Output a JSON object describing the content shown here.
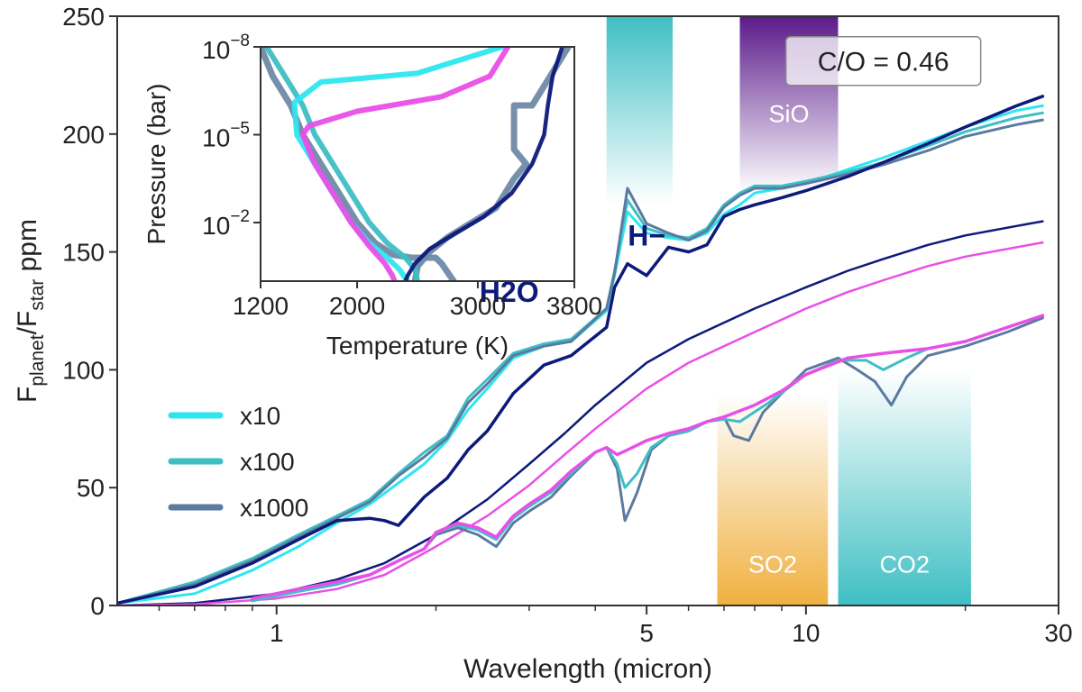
{
  "chart_data": {
    "type": "line",
    "main": {
      "xlabel": "Wavelength (micron)",
      "ylabel_main": "F",
      "ylabel_sub1": "planet",
      "ylabel_mid": "/F",
      "ylabel_sub2": "star",
      "ylabel_end": " ppm",
      "xscale": "log",
      "xlim": [
        0.5,
        30
      ],
      "ylim": [
        0,
        250
      ],
      "xticks": [
        1,
        5,
        10,
        30
      ],
      "xtick_labels": [
        "1",
        "5",
        "10",
        "30"
      ],
      "yticks": [
        0,
        50,
        100,
        150,
        200,
        250
      ],
      "ytick_labels": [
        "0",
        "50",
        "100",
        "150",
        "200",
        "250"
      ],
      "bands": [
        {
          "label": "",
          "range": [
            4.2,
            5.6
          ],
          "color": "#3fbfc4",
          "fade": "down"
        },
        {
          "label": "SiO",
          "range": [
            7.5,
            11.5
          ],
          "color": "#5b1a8a",
          "fade": "down"
        },
        {
          "label": "SO2",
          "range": [
            6.8,
            11.0
          ],
          "color": "#f0b040",
          "fade": "up"
        },
        {
          "label": "CO2",
          "range": [
            11.5,
            20.5
          ],
          "color": "#3fbfc4",
          "fade": "up"
        }
      ],
      "annotations": [
        {
          "text": "C/O = 0.46",
          "x": 14.0,
          "y": 231,
          "boxed": true,
          "color": "#222222"
        },
        {
          "text": "H2O",
          "x": 2.75,
          "y": 133,
          "bold": true,
          "color": "#0d1a7a"
        },
        {
          "text": "H−",
          "x": 5.0,
          "y": 157,
          "bold": true,
          "color": "#0d1a7a"
        }
      ],
      "legend": {
        "position": "left-middle",
        "entries": [
          {
            "label": "x10",
            "color": "#2ee6f0"
          },
          {
            "label": "x100",
            "color": "#3fbfc4"
          },
          {
            "label": "x1000",
            "color": "#5b7aa0"
          }
        ]
      },
      "series": [
        {
          "name": "x10 (upper)",
          "color": "#2ee6f0",
          "width": 3,
          "x": [
            0.5,
            0.7,
            0.9,
            1.1,
            1.3,
            1.5,
            1.7,
            1.9,
            2.1,
            2.3,
            2.5,
            2.8,
            3.2,
            3.6,
            4.2,
            4.35,
            4.6,
            5.0,
            5.5,
            6.0,
            6.5,
            7.0,
            7.5,
            8.0,
            9.0,
            10.0,
            12.0,
            14.0,
            17.0,
            20.0,
            25.0,
            28.0
          ],
          "y": [
            1,
            5,
            15,
            25,
            35,
            43,
            52,
            60,
            70,
            83,
            92,
            105,
            110,
            112,
            125,
            140,
            167,
            158,
            156,
            155,
            158,
            166,
            170,
            175,
            177,
            179,
            185,
            190,
            197,
            203,
            210,
            212
          ]
        },
        {
          "name": "x100 (upper)",
          "color": "#3fbfc4",
          "width": 3,
          "x": [
            0.5,
            0.7,
            0.9,
            1.1,
            1.3,
            1.5,
            1.7,
            1.9,
            2.1,
            2.3,
            2.5,
            2.8,
            3.2,
            3.6,
            4.2,
            4.35,
            4.6,
            5.0,
            5.5,
            6.0,
            6.5,
            7.0,
            7.5,
            8.0,
            9.0,
            10.0,
            12.0,
            14.0,
            17.0,
            20.0,
            25.0,
            28.0
          ],
          "y": [
            1,
            10,
            20,
            30,
            38,
            45,
            56,
            65,
            72,
            88,
            96,
            107,
            111,
            113,
            126,
            142,
            172,
            160,
            157,
            156,
            160,
            170,
            175,
            178,
            178,
            180,
            184,
            188,
            195,
            201,
            207,
            209
          ]
        },
        {
          "name": "x1000 (upper)",
          "color": "#5b7aa0",
          "width": 3,
          "x": [
            0.5,
            0.7,
            0.9,
            1.1,
            1.3,
            1.5,
            1.7,
            1.9,
            2.1,
            2.3,
            2.5,
            2.8,
            3.2,
            3.6,
            4.2,
            4.35,
            4.6,
            5.0,
            5.5,
            6.0,
            6.5,
            7.0,
            7.5,
            8.0,
            9.0,
            10.0,
            12.0,
            14.0,
            17.0,
            20.0,
            25.0,
            28.0
          ],
          "y": [
            1,
            9,
            19,
            29,
            37,
            44,
            55,
            63,
            71,
            86,
            94,
            106,
            110,
            112,
            126,
            141,
            177,
            162,
            158,
            155,
            159,
            169,
            174,
            177,
            177,
            179,
            183,
            187,
            193,
            199,
            204,
            206
          ]
        },
        {
          "name": "baseline (upper, navy)",
          "color": "#0d1a7a",
          "width": 3.5,
          "x": [
            0.5,
            0.7,
            0.9,
            1.1,
            1.3,
            1.5,
            1.6,
            1.7,
            1.9,
            2.1,
            2.3,
            2.5,
            2.8,
            3.2,
            3.6,
            4.2,
            4.35,
            4.6,
            5.0,
            5.5,
            6.0,
            6.5,
            7.0,
            7.5,
            8.0,
            9.0,
            10.0,
            12.0,
            14.0,
            17.0,
            20.0,
            25.0,
            28.0
          ],
          "y": [
            1,
            8,
            18,
            28,
            36,
            37,
            36,
            34,
            46,
            54,
            66,
            74,
            90,
            102,
            106,
            118,
            135,
            145,
            140,
            152,
            150,
            153,
            165,
            168,
            170,
            173,
            176,
            182,
            188,
            196,
            203,
            212,
            216
          ]
        },
        {
          "name": "H- continuum (navy)",
          "color": "#0d1a7a",
          "width": 2.5,
          "x": [
            0.5,
            0.7,
            1.0,
            1.3,
            1.6,
            2.0,
            2.5,
            3.0,
            3.5,
            4.0,
            5.0,
            6.0,
            7.0,
            8.0,
            10.0,
            12.0,
            14.0,
            17.0,
            20.0,
            25.0,
            28.0
          ],
          "y": [
            0,
            1,
            5,
            11,
            18,
            30,
            45,
            60,
            73,
            85,
            103,
            113,
            120,
            126,
            135,
            142,
            147,
            153,
            157,
            161,
            163
          ]
        },
        {
          "name": "H- continuum (magenta)",
          "color": "#e94fe8",
          "width": 2.5,
          "x": [
            0.5,
            0.7,
            1.0,
            1.3,
            1.6,
            2.0,
            2.5,
            3.0,
            3.5,
            4.0,
            5.0,
            6.0,
            7.0,
            8.0,
            10.0,
            12.0,
            14.0,
            17.0,
            20.0,
            25.0,
            28.0
          ],
          "y": [
            0,
            0.5,
            3,
            7,
            13,
            25,
            38,
            51,
            64,
            75,
            92,
            103,
            110,
            116,
            126,
            133,
            138,
            144,
            148,
            152,
            154
          ]
        },
        {
          "name": "x1000 (lower)",
          "color": "#5b7aa0",
          "width": 3,
          "x": [
            0.9,
            1.1,
            1.3,
            1.5,
            1.7,
            1.9,
            2.0,
            2.2,
            2.4,
            2.6,
            2.8,
            3.0,
            3.3,
            3.6,
            4.0,
            4.2,
            4.4,
            4.55,
            4.8,
            5.1,
            5.5,
            6.0,
            6.5,
            7.0,
            7.3,
            7.8,
            8.3,
            9.0,
            10.0,
            11.5,
            12.5,
            13.5,
            14.5,
            15.5,
            17.0,
            20.0,
            24.0,
            28.0
          ],
          "y": [
            2,
            6,
            9,
            13,
            19,
            24,
            30,
            33,
            30,
            25,
            35,
            40,
            46,
            55,
            65,
            67,
            58,
            36,
            48,
            66,
            72,
            74,
            78,
            80,
            72,
            70,
            82,
            90,
            100,
            105,
            100,
            95,
            85,
            97,
            106,
            110,
            116,
            122
          ]
        },
        {
          "name": "x100 (lower)",
          "color": "#3fbfc4",
          "width": 3,
          "x": [
            0.9,
            1.1,
            1.3,
            1.5,
            1.7,
            1.9,
            2.0,
            2.2,
            2.4,
            2.6,
            2.8,
            3.0,
            3.3,
            3.6,
            4.0,
            4.2,
            4.4,
            4.55,
            4.8,
            5.1,
            5.5,
            6.0,
            6.5,
            7.0,
            7.5,
            8.5,
            10.0,
            11.5,
            13.0,
            14.0,
            15.5,
            17.0,
            20.0,
            24.0,
            28.0
          ],
          "y": [
            2,
            6,
            9,
            13,
            19,
            24,
            31,
            34,
            32,
            28,
            37,
            42,
            48,
            56,
            65,
            67,
            60,
            50,
            56,
            67,
            72,
            74,
            78,
            79,
            78,
            86,
            98,
            104,
            104,
            100,
            105,
            109,
            112,
            118,
            123
          ]
        },
        {
          "name": "baseline (lower, magenta)",
          "color": "#e94fe8",
          "width": 3.5,
          "x": [
            0.9,
            1.1,
            1.3,
            1.5,
            1.7,
            1.9,
            2.0,
            2.2,
            2.4,
            2.6,
            2.8,
            3.0,
            3.3,
            3.6,
            4.0,
            4.2,
            4.4,
            4.6,
            5.0,
            5.5,
            6.0,
            6.5,
            7.0,
            8.0,
            9.0,
            10.0,
            12.0,
            14.0,
            17.0,
            20.0,
            24.0,
            28.0
          ],
          "y": [
            3,
            7,
            10,
            13,
            19,
            24,
            31,
            35,
            33,
            29,
            38,
            43,
            49,
            57,
            65,
            67,
            64,
            66,
            70,
            73,
            75,
            78,
            80,
            85,
            91,
            98,
            105,
            107,
            109,
            112,
            118,
            123
          ]
        }
      ]
    },
    "inset": {
      "xlabel": "Temperature (K)",
      "ylabel": "Pressure (bar)",
      "xlim": [
        1200,
        3800
      ],
      "ylim_exp": [
        -8,
        0
      ],
      "xticks": [
        1200,
        2000,
        3000,
        3800
      ],
      "xtick_labels": [
        "1200",
        "2000",
        "3000",
        "3800"
      ],
      "yticks_exp": [
        -8,
        -5,
        -2
      ],
      "ytick_base": "10",
      "ytick_exps": [
        "−8",
        "−5",
        "−2"
      ],
      "series": [
        {
          "name": "x1000 profile",
          "color": "#6f8aa8",
          "width": 7,
          "T": [
            1200,
            1300,
            1450,
            1550,
            1700,
            1850,
            2000,
            2150,
            2300,
            2450,
            2650,
            2700,
            2750,
            2800
          ],
          "logP": [
            -8,
            -7,
            -6,
            -5,
            -4,
            -3,
            -2,
            -1.3,
            -0.9,
            -0.8,
            -0.8,
            -0.6,
            -0.3,
            0
          ]
        },
        {
          "name": "x1000 profile (hot)",
          "color": "#6f8aa8",
          "width": 7,
          "T": [
            3750,
            3600,
            3450,
            3300,
            3300,
            3400,
            3300,
            3150,
            2950,
            2750,
            2600,
            2500,
            2480
          ],
          "logP": [
            -8,
            -7,
            -6,
            -6,
            -4.5,
            -4,
            -3.5,
            -2.5,
            -2,
            -1.5,
            -1,
            -0.5,
            0
          ]
        },
        {
          "name": "x100 profile",
          "color": "#3fbfc4",
          "width": 6,
          "T": [
            1250,
            1400,
            1550,
            1650,
            1800,
            1950,
            2100,
            2250,
            2400,
            2480,
            2500
          ],
          "logP": [
            -8,
            -7,
            -6,
            -5,
            -4,
            -3,
            -2,
            -1.3,
            -0.8,
            -0.4,
            0
          ]
        },
        {
          "name": "x10 profile",
          "color": "#2ee6f0",
          "width": 6,
          "T": [
            3200,
            2500,
            1700,
            1480,
            1500,
            1650,
            1800,
            1950,
            2100,
            2250,
            2350,
            2400,
            2420
          ],
          "logP": [
            -8,
            -7.1,
            -6.8,
            -6.1,
            -5,
            -4,
            -3,
            -2,
            -1.3,
            -0.8,
            -0.4,
            -0.1,
            0
          ]
        },
        {
          "name": "baseline profile (magenta)",
          "color": "#e94fe8",
          "width": 6,
          "T": [
            3250,
            3100,
            2700,
            2000,
            1600,
            1550,
            1650,
            1800,
            1950,
            2100,
            2230,
            2290,
            2310
          ],
          "logP": [
            -8,
            -7,
            -6.3,
            -5.8,
            -5.3,
            -5,
            -4,
            -3,
            -2,
            -1.2,
            -0.6,
            -0.2,
            0
          ]
        },
        {
          "name": "baseline profile (navy)",
          "color": "#0d1a7a",
          "width": 4.5,
          "T": [
            3700,
            3620,
            3580,
            3550,
            3450,
            3280,
            3050,
            2800,
            2600,
            2480,
            2420,
            2400
          ],
          "logP": [
            -8,
            -7,
            -6,
            -5,
            -4,
            -3,
            -2.2,
            -1.6,
            -1.1,
            -0.6,
            -0.2,
            0
          ]
        }
      ]
    }
  }
}
